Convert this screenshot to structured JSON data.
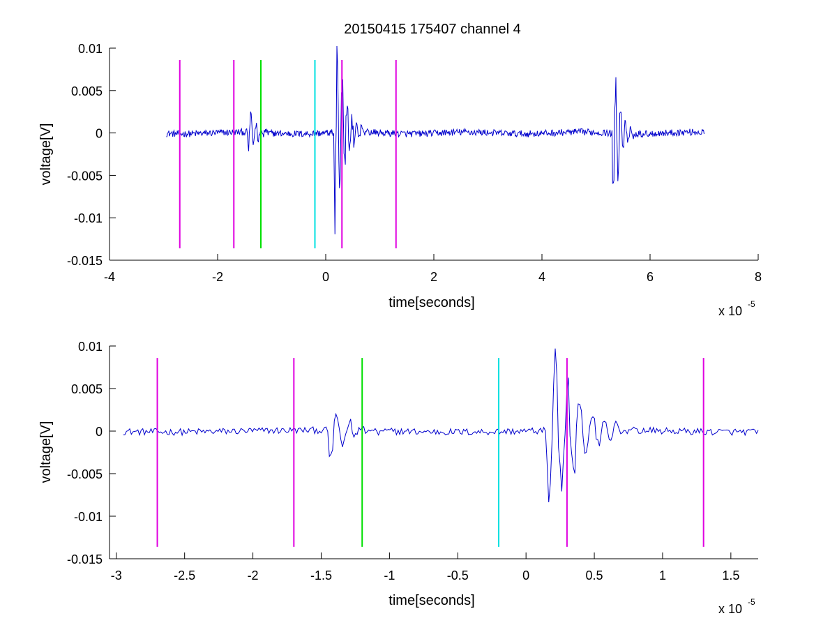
{
  "chart_data": [
    {
      "type": "line",
      "title": "20150415 175407 channel 4",
      "xlabel": "time[seconds]",
      "ylabel": "voltage[V]",
      "x_exponent_base": "x 10",
      "x_exponent_power": "-5",
      "xlim": [
        -4,
        8
      ],
      "ylim": [
        -0.015,
        0.01
      ],
      "xticks": [
        -4,
        -2,
        0,
        2,
        4,
        6,
        8
      ],
      "xtick_labels": [
        "-4",
        "-2",
        "0",
        "2",
        "4",
        "6",
        "8"
      ],
      "yticks": [
        0.01,
        0.005,
        0,
        -0.005,
        -0.01,
        -0.015
      ],
      "ytick_labels": [
        "0.01",
        "0.005",
        "0",
        "-0.005",
        "-0.01",
        "-0.015"
      ],
      "grid": false,
      "signal": {
        "color": "#0000cc",
        "x_range": [
          -2.95,
          7.0
        ],
        "bursts": [
          {
            "t": -1.4,
            "amp": 0.0032,
            "dur": 0.35
          },
          {
            "t": 0.2,
            "amp": 0.012,
            "dur": 0.5
          },
          {
            "t": 5.35,
            "amp": 0.0092,
            "dur": 0.35
          }
        ]
      },
      "markers": [
        {
          "x": -2.7,
          "color": "#e000e0"
        },
        {
          "x": -1.7,
          "color": "#e000e0"
        },
        {
          "x": -1.2,
          "color": "#00e000"
        },
        {
          "x": -0.2,
          "color": "#00e0e0"
        },
        {
          "x": 0.3,
          "color": "#e000e0"
        },
        {
          "x": 1.3,
          "color": "#e000e0"
        }
      ],
      "marker_y_range": [
        -0.0136,
        0.0086
      ]
    },
    {
      "type": "line",
      "title": "",
      "xlabel": "time[seconds]",
      "ylabel": "voltage[V]",
      "x_exponent_base": "x 10",
      "x_exponent_power": "-5",
      "xlim": [
        -3.05,
        1.7
      ],
      "ylim": [
        -0.015,
        0.01
      ],
      "xticks": [
        -3,
        -2.5,
        -2,
        -1.5,
        -1,
        -0.5,
        0,
        0.5,
        1,
        1.5
      ],
      "xtick_labels": [
        "-3",
        "-2.5",
        "-2",
        "-1.5",
        "-1",
        "-0.5",
        "0",
        "0.5",
        "1",
        "1.5"
      ],
      "yticks": [
        0.01,
        0.005,
        0,
        -0.005,
        -0.01,
        -0.015
      ],
      "ytick_labels": [
        "0.01",
        "0.005",
        "0",
        "-0.005",
        "-0.01",
        "-0.015"
      ],
      "grid": false,
      "signal": {
        "color": "#0000cc",
        "x_range": [
          -2.95,
          1.7
        ],
        "bursts": [
          {
            "t": -1.4,
            "amp": 0.0032,
            "dur": 0.35
          },
          {
            "t": 0.2,
            "amp": 0.012,
            "dur": 0.5
          }
        ]
      },
      "markers": [
        {
          "x": -2.7,
          "color": "#e000e0"
        },
        {
          "x": -1.7,
          "color": "#e000e0"
        },
        {
          "x": -1.2,
          "color": "#00e000"
        },
        {
          "x": -0.2,
          "color": "#00e0e0"
        },
        {
          "x": 0.3,
          "color": "#e000e0"
        },
        {
          "x": 1.3,
          "color": "#e000e0"
        }
      ],
      "marker_y_range": [
        -0.0136,
        0.0086
      ]
    }
  ]
}
